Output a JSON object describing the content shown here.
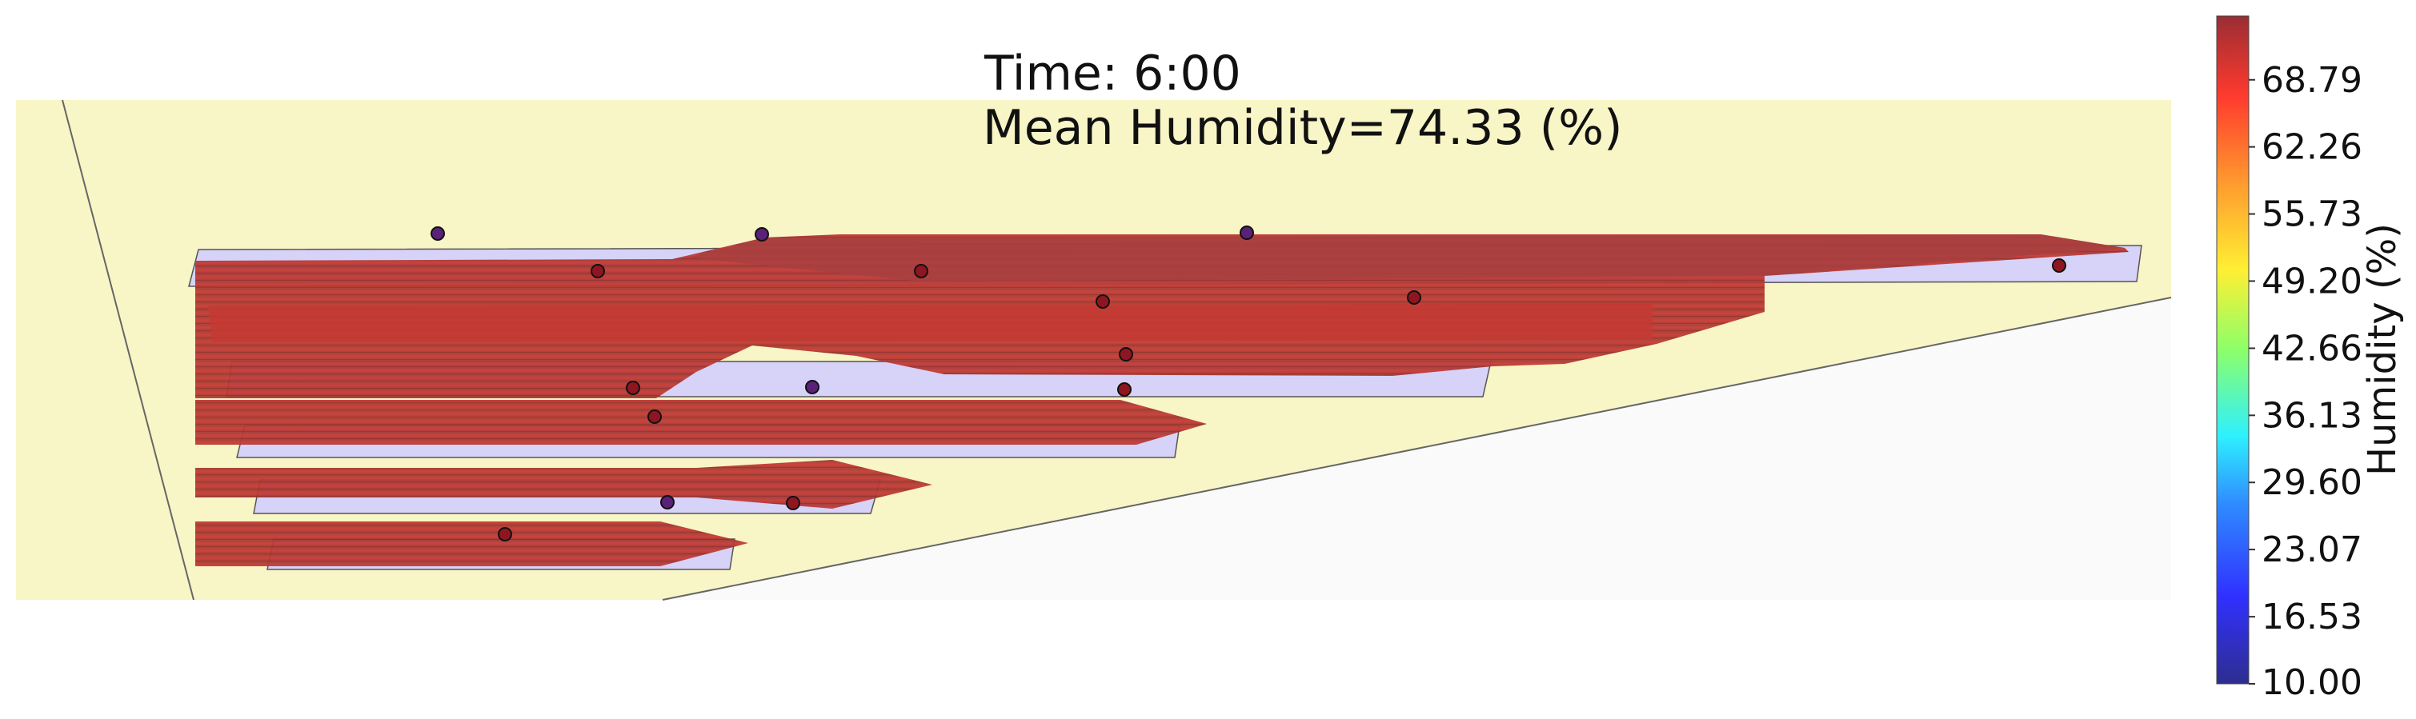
{
  "chart_data": {
    "type": "heatmap",
    "title_lines": [
      "Time: 6:00",
      "Mean Humidity=74.33 (%)"
    ],
    "colorbar": {
      "label": "Humidity (%)",
      "min": 10.0,
      "max": 75.0,
      "ticks": [
        "10.00",
        "16.53",
        "23.07",
        "29.60",
        "36.13",
        "42.66",
        "49.20",
        "55.73",
        "62.26",
        "68.79"
      ],
      "colormap": "jet"
    },
    "colors": {
      "field_fill": "#f8f5c6",
      "background": "#fafafa",
      "bench_fill": "#d7d2f7",
      "surface_dark": "#a63a36",
      "surface_mid": "#c23a35",
      "sensor_low": "#5a2178",
      "sensor_high": "#8e1621"
    }
  }
}
